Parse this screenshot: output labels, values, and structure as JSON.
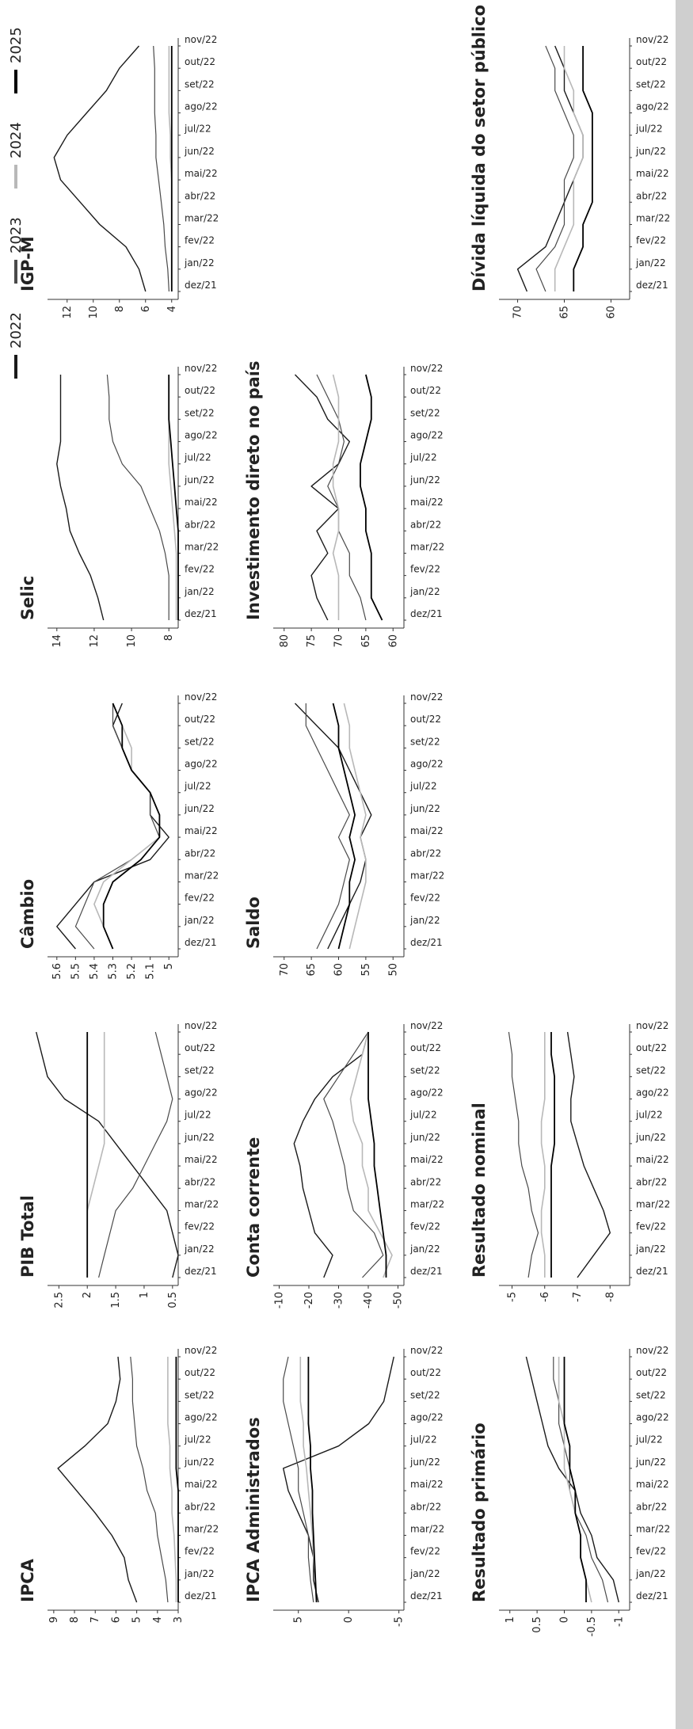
{
  "legend": [
    "2022",
    "2023",
    "2024",
    "2025"
  ],
  "colors": {
    "2022": "#1a1a1a",
    "2023": "#4a4a4a",
    "2024": "#b8b8b8",
    "2025": "#000000"
  },
  "months": [
    "dez/21",
    "jan/22",
    "fev/22",
    "mar/22",
    "abr/22",
    "mai/22",
    "jun/22",
    "jul/22",
    "ago/22",
    "set/22",
    "out/22",
    "nov/22"
  ],
  "chart_data": [
    {
      "type": "line",
      "title": "IPCA",
      "yticks": [
        3,
        4,
        5,
        6,
        7,
        8,
        9
      ],
      "ylim": [
        3,
        9.3
      ],
      "series": [
        {
          "name": "2022",
          "values": [
            5.0,
            5.4,
            5.6,
            6.2,
            7.0,
            7.9,
            8.8,
            7.5,
            6.4,
            6.0,
            5.8,
            5.9
          ]
        },
        {
          "name": "2023",
          "values": [
            3.5,
            3.6,
            3.8,
            4.0,
            4.1,
            4.5,
            4.7,
            5.0,
            5.1,
            5.2,
            5.2,
            5.3
          ]
        },
        {
          "name": "2024",
          "values": [
            3.1,
            3.1,
            3.15,
            3.2,
            3.3,
            3.3,
            3.4,
            3.4,
            3.5,
            3.5,
            3.5,
            3.5
          ]
        },
        {
          "name": "2025",
          "values": [
            3.0,
            3.0,
            3.0,
            3.0,
            3.0,
            3.0,
            3.1,
            3.1,
            3.1,
            3.1,
            3.1,
            3.1
          ]
        }
      ]
    },
    {
      "type": "line",
      "title": "PIB Total",
      "yticks": [
        0.5,
        1,
        1.5,
        2,
        2.5
      ],
      "ylim": [
        0.4,
        2.7
      ],
      "series": [
        {
          "name": "2022",
          "values": [
            0.5,
            0.4,
            0.5,
            0.6,
            0.9,
            1.2,
            1.5,
            1.8,
            2.4,
            2.7,
            2.8,
            2.9
          ]
        },
        {
          "name": "2023",
          "values": [
            1.8,
            1.7,
            1.6,
            1.5,
            1.2,
            1.0,
            0.8,
            0.6,
            0.5,
            0.6,
            0.7,
            0.8
          ]
        },
        {
          "name": "2024",
          "values": [
            2.0,
            2.0,
            2.0,
            2.0,
            1.9,
            1.8,
            1.7,
            1.7,
            1.7,
            1.7,
            1.7,
            1.7
          ]
        },
        {
          "name": "2025",
          "values": [
            2.0,
            2.0,
            2.0,
            2.0,
            2.0,
            2.0,
            2.0,
            2.0,
            2.0,
            2.0,
            2.0,
            2.0
          ]
        }
      ]
    },
    {
      "type": "line",
      "title": "Câmbio",
      "yticks": [
        5,
        5.1,
        5.2,
        5.3,
        5.4,
        5.5,
        5.6
      ],
      "ylim": [
        4.95,
        5.65
      ],
      "series": [
        {
          "name": "2022",
          "values": [
            5.5,
            5.6,
            5.5,
            5.4,
            5.1,
            5.0,
            5.1,
            5.1,
            5.2,
            5.25,
            5.3,
            5.25
          ]
        },
        {
          "name": "2023",
          "values": [
            5.4,
            5.5,
            5.45,
            5.4,
            5.2,
            5.05,
            5.1,
            5.1,
            5.2,
            5.25,
            5.3,
            5.3
          ]
        },
        {
          "name": "2024",
          "values": [
            5.3,
            5.35,
            5.4,
            5.35,
            5.2,
            5.05,
            5.05,
            5.1,
            5.2,
            5.2,
            5.25,
            5.3
          ]
        },
        {
          "name": "2025",
          "values": [
            5.3,
            5.35,
            5.35,
            5.3,
            5.15,
            5.05,
            5.05,
            5.1,
            5.2,
            5.25,
            5.25,
            5.3
          ]
        }
      ]
    },
    {
      "type": "line",
      "title": "Selic",
      "yticks": [
        8,
        10,
        12,
        14
      ],
      "ylim": [
        7.5,
        14.5
      ],
      "series": [
        {
          "name": "2022",
          "values": [
            11.5,
            11.8,
            12.2,
            12.8,
            13.3,
            13.5,
            13.8,
            14.0,
            13.8,
            13.8,
            13.8,
            13.8
          ]
        },
        {
          "name": "2023",
          "values": [
            8.0,
            8.0,
            8.0,
            8.2,
            8.5,
            9.0,
            9.5,
            10.5,
            11.0,
            11.2,
            11.2,
            11.3
          ]
        },
        {
          "name": "2024",
          "values": [
            7.6,
            7.6,
            7.6,
            7.6,
            7.7,
            7.8,
            7.9,
            8.0,
            8.0,
            8.0,
            8.0,
            8.0
          ]
        },
        {
          "name": "2025",
          "values": [
            7.5,
            7.5,
            7.5,
            7.5,
            7.5,
            7.6,
            7.7,
            7.8,
            7.9,
            8.0,
            8.0,
            8.0
          ]
        }
      ]
    },
    {
      "type": "line",
      "title": "IGP-M",
      "yticks": [
        4,
        6,
        8,
        10,
        12
      ],
      "ylim": [
        3.5,
        13.5
      ],
      "series": [
        {
          "name": "2022",
          "values": [
            6.0,
            6.5,
            7.5,
            9.5,
            11.0,
            12.5,
            13.0,
            12.0,
            10.5,
            9.0,
            8.0,
            6.5
          ]
        },
        {
          "name": "2023",
          "values": [
            4.2,
            4.3,
            4.5,
            4.6,
            4.8,
            5.0,
            5.2,
            5.2,
            5.3,
            5.3,
            5.3,
            5.4
          ]
        },
        {
          "name": "2024",
          "values": [
            4.0,
            4.0,
            4.0,
            4.0,
            4.0,
            4.0,
            4.1,
            4.1,
            4.2,
            4.2,
            4.2,
            4.2
          ]
        },
        {
          "name": "2025",
          "values": [
            4.0,
            4.0,
            4.0,
            4.0,
            4.0,
            4.0,
            4.0,
            4.0,
            4.0,
            4.0,
            4.0,
            4.0
          ]
        }
      ]
    },
    {
      "type": "line",
      "title": "IPCA Administrados",
      "yticks": [
        -5,
        0,
        5
      ],
      "ylim": [
        -5.5,
        7.5
      ],
      "series": [
        {
          "name": "2022",
          "values": [
            3.0,
            3.5,
            3.5,
            4.0,
            5.0,
            6.0,
            6.5,
            1.0,
            -2.0,
            -3.5,
            -4.0,
            -4.5
          ]
        },
        {
          "name": "2023",
          "values": [
            3.5,
            3.8,
            4.0,
            4.0,
            4.5,
            5.0,
            5.0,
            5.5,
            6.0,
            6.5,
            6.5,
            6.0
          ]
        },
        {
          "name": "2024",
          "values": [
            3.2,
            3.3,
            3.5,
            3.6,
            3.8,
            4.0,
            4.2,
            4.5,
            4.5,
            4.8,
            4.8,
            4.8
          ]
        },
        {
          "name": "2025",
          "values": [
            3.2,
            3.3,
            3.4,
            3.5,
            3.6,
            3.6,
            3.8,
            3.8,
            4.0,
            4.0,
            4.0,
            4.0
          ]
        }
      ]
    },
    {
      "type": "line",
      "title": "Conta corrente",
      "yticks": [
        -50,
        -40,
        -30,
        -20,
        -10
      ],
      "ylim": [
        -52,
        -8
      ],
      "series": [
        {
          "name": "2022",
          "values": [
            -25,
            -28,
            -22,
            -20,
            -18,
            -17,
            -15,
            -18,
            -22,
            -28,
            -38,
            -40
          ]
        },
        {
          "name": "2023",
          "values": [
            -38,
            -45,
            -42,
            -35,
            -33,
            -32,
            -30,
            -28,
            -25,
            -30,
            -35,
            -40
          ]
        },
        {
          "name": "2024",
          "values": [
            -45,
            -48,
            -44,
            -40,
            -40,
            -38,
            -38,
            -35,
            -34,
            -36,
            -38,
            -40
          ]
        },
        {
          "name": "2025",
          "values": [
            -46,
            -46,
            -45,
            -44,
            -43,
            -42,
            -42,
            -41,
            -40,
            -40,
            -40,
            -40
          ]
        }
      ]
    },
    {
      "type": "line",
      "title": "Saldo",
      "yticks": [
        50,
        55,
        60,
        65,
        70
      ],
      "ylim": [
        48,
        72
      ],
      "series": [
        {
          "name": "2022",
          "values": [
            62,
            60,
            58,
            56,
            55,
            56,
            54,
            56,
            58,
            60,
            64,
            68
          ]
        },
        {
          "name": "2023",
          "values": [
            64,
            62,
            60,
            59,
            58,
            60,
            58,
            60,
            62,
            64,
            66,
            66
          ]
        },
        {
          "name": "2024",
          "values": [
            58,
            57,
            56,
            55,
            55,
            56,
            55,
            56,
            57,
            58,
            58,
            59
          ]
        },
        {
          "name": "2025",
          "values": [
            60,
            59,
            58,
            58,
            57,
            58,
            57,
            58,
            59,
            60,
            60,
            61
          ]
        }
      ]
    },
    {
      "type": "line",
      "title": "Investimento direto no país",
      "yticks": [
        60,
        65,
        70,
        75,
        80
      ],
      "ylim": [
        58,
        82
      ],
      "series": [
        {
          "name": "2022",
          "values": [
            72,
            74,
            75,
            72,
            74,
            70,
            75,
            70,
            68,
            72,
            74,
            78
          ]
        },
        {
          "name": "2023",
          "values": [
            65,
            66,
            68,
            68,
            70,
            70,
            72,
            70,
            69,
            70,
            72,
            74
          ]
        },
        {
          "name": "2024",
          "values": [
            70,
            70,
            70,
            71,
            70,
            70,
            71,
            71,
            70,
            70,
            70,
            71
          ]
        },
        {
          "name": "2025",
          "values": [
            62,
            64,
            64,
            64,
            65,
            65,
            66,
            66,
            65,
            64,
            64,
            65
          ]
        }
      ]
    },
    {
      "type": "line",
      "title": "Resultado primário",
      "yticks": [
        -1,
        -0.5,
        0,
        0.5,
        1
      ],
      "ylim": [
        -1.2,
        1.2
      ],
      "series": [
        {
          "name": "2022",
          "values": [
            -1.0,
            -0.9,
            -0.6,
            -0.5,
            -0.3,
            -0.2,
            0.1,
            0.3,
            0.4,
            0.5,
            0.6,
            0.7
          ]
        },
        {
          "name": "2023",
          "values": [
            -0.8,
            -0.7,
            -0.5,
            -0.4,
            -0.2,
            -0.1,
            -0.1,
            0.0,
            0.1,
            0.1,
            0.2,
            0.2
          ]
        },
        {
          "name": "2024",
          "values": [
            -0.5,
            -0.4,
            -0.3,
            -0.3,
            -0.2,
            -0.1,
            0.0,
            0.0,
            0.0,
            0.1,
            0.1,
            0.1
          ]
        },
        {
          "name": "2025",
          "values": [
            -0.4,
            -0.4,
            -0.3,
            -0.3,
            -0.2,
            -0.2,
            -0.1,
            -0.1,
            0.0,
            0.0,
            0.0,
            0.0
          ]
        }
      ]
    },
    {
      "type": "line",
      "title": "Resultado nominal",
      "yticks": [
        -8,
        -7,
        -6,
        -5
      ],
      "ylim": [
        -8.6,
        -4.6
      ],
      "series": [
        {
          "name": "2022",
          "values": [
            -7.0,
            -7.5,
            -8.0,
            -7.8,
            -7.5,
            -7.2,
            -7.0,
            -6.8,
            -6.8,
            -6.9,
            -6.8,
            -6.7
          ]
        },
        {
          "name": "2023",
          "values": [
            -5.5,
            -5.6,
            -5.8,
            -5.6,
            -5.5,
            -5.3,
            -5.2,
            -5.2,
            -5.1,
            -5.0,
            -5.0,
            -4.9
          ]
        },
        {
          "name": "2024",
          "values": [
            -6.0,
            -6.0,
            -5.9,
            -5.9,
            -6.0,
            -6.0,
            -5.9,
            -5.9,
            -6.0,
            -6.0,
            -6.0,
            -6.0
          ]
        },
        {
          "name": "2025",
          "values": [
            -6.2,
            -6.2,
            -6.2,
            -6.2,
            -6.2,
            -6.2,
            -6.3,
            -6.3,
            -6.3,
            -6.3,
            -6.2,
            -6.2
          ]
        }
      ]
    },
    {
      "type": "line",
      "title": "Dívida líquida do setor público",
      "yticks": [
        60,
        65,
        70
      ],
      "ylim": [
        58,
        72
      ],
      "series": [
        {
          "name": "2022",
          "values": [
            69,
            70,
            67,
            66,
            65,
            64,
            63,
            63,
            64,
            65,
            65,
            66
          ]
        },
        {
          "name": "2023",
          "values": [
            67,
            68,
            66,
            65,
            65,
            65,
            64,
            64,
            65,
            66,
            66,
            67
          ]
        },
        {
          "name": "2024",
          "values": [
            66,
            66,
            65,
            64,
            64,
            64,
            63,
            63,
            64,
            64,
            65,
            65
          ]
        },
        {
          "name": "2025",
          "values": [
            64,
            64,
            63,
            63,
            62,
            62,
            62,
            62,
            62,
            63,
            63,
            63
          ]
        }
      ]
    }
  ]
}
